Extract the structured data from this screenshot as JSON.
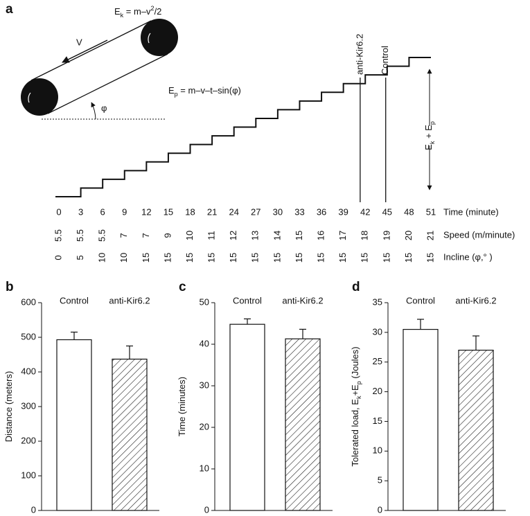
{
  "chart_data": [
    {
      "type": "step",
      "panel": "a",
      "ek_formula": [
        "E",
        "k",
        " = m–v",
        "2",
        "/2"
      ],
      "ep_formula": [
        "E",
        "p",
        " = m–v–t–sin(φ)"
      ],
      "velocity_label": "V",
      "angle_label": "φ",
      "load_label": [
        "E",
        "k",
        " + E",
        "p"
      ],
      "x": [
        0,
        3,
        6,
        9,
        12,
        15,
        18,
        21,
        24,
        27,
        30,
        33,
        36,
        39,
        42,
        45,
        48,
        51
      ],
      "xlim": [
        0,
        51
      ],
      "xlabel": "Time (minute)",
      "speed": [
        5.5,
        5.5,
        5.5,
        7,
        7,
        9,
        10,
        11,
        12,
        13,
        14,
        15,
        16,
        17,
        18,
        19,
        20,
        21
      ],
      "speed_label": "Speed (m/minute)",
      "incline": [
        0,
        5,
        10,
        10,
        15,
        15,
        15,
        15,
        15,
        15,
        15,
        15,
        15,
        15,
        15,
        15,
        15,
        15
      ],
      "incline_label": "Incline (φ,° )",
      "markers": [
        {
          "label": "anti-Kir6.2",
          "x": 41.3
        },
        {
          "label": "Control",
          "x": 44.8
        }
      ]
    },
    {
      "type": "bar",
      "panel": "b",
      "categories": [
        "Control",
        "anti-Kir6.2"
      ],
      "values": [
        493,
        437
      ],
      "errors": [
        22,
        38
      ],
      "ylabel": [
        "Distance (meters)"
      ],
      "ylim": [
        0,
        600
      ],
      "yticks": [
        0,
        100,
        200,
        300,
        400,
        500,
        600
      ]
    },
    {
      "type": "bar",
      "panel": "c",
      "categories": [
        "Control",
        "anti-Kir6.2"
      ],
      "values": [
        44.8,
        41.3
      ],
      "errors": [
        1.3,
        2.3
      ],
      "ylabel": [
        "Time (minutes)"
      ],
      "ylim": [
        0,
        50
      ],
      "yticks": [
        0,
        10,
        20,
        30,
        40,
        50
      ]
    },
    {
      "type": "bar",
      "panel": "d",
      "categories": [
        "Control",
        "anti-Kir6.2"
      ],
      "values": [
        30.5,
        27
      ],
      "errors": [
        1.7,
        2.4
      ],
      "ylabel": [
        "Tolerated load, E",
        "k",
        "+E",
        "p",
        " (Joules)"
      ],
      "ylim": [
        0,
        35
      ],
      "yticks": [
        0,
        5,
        10,
        15,
        20,
        25,
        30,
        35
      ]
    }
  ]
}
